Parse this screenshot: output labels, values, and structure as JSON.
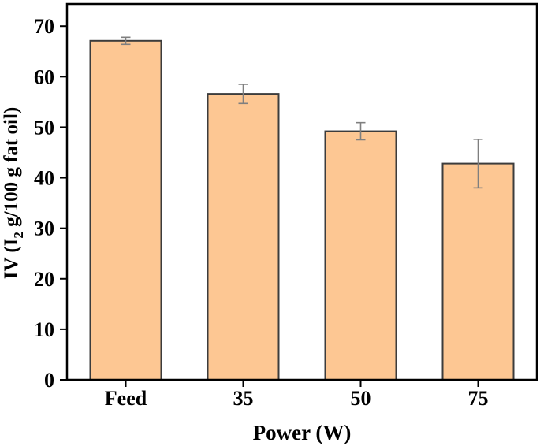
{
  "chart_data": {
    "type": "bar",
    "title": "",
    "xlabel": "Power (W)",
    "ylabel": "IV (I₂ g/100 g fat oil)",
    "ylabel_parts": {
      "pre": "IV (I",
      "sub": "2",
      "post": " g/100 g fat oil)"
    },
    "categories": [
      "Feed",
      "35",
      "50",
      "75"
    ],
    "values": [
      67.1,
      56.6,
      49.2,
      42.8
    ],
    "errors": [
      0.7,
      1.9,
      1.7,
      4.8
    ],
    "ylim": [
      0,
      74.4
    ],
    "yticks": [
      0,
      10,
      20,
      30,
      40,
      50,
      60,
      70
    ],
    "grid": false,
    "legend_position": "none",
    "colors": {
      "bar_fill": "#FDC793",
      "bar_edge": "#3C3C3C",
      "error_bar": "#7F7F7F",
      "axis": "#000000",
      "background": "#FFFFFF"
    }
  }
}
